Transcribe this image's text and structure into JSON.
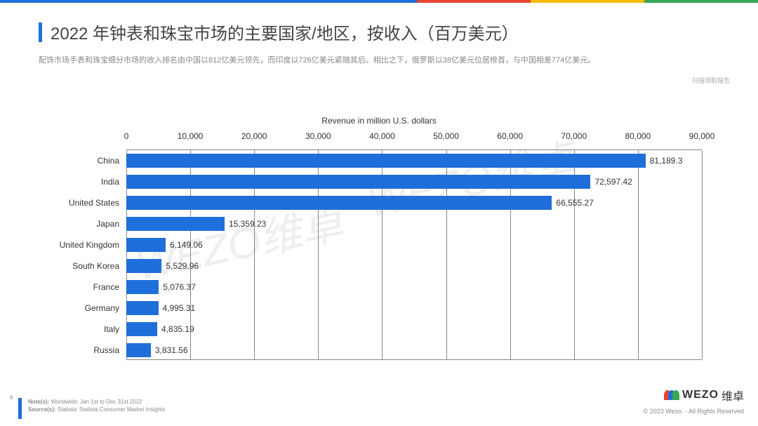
{
  "accent_colors": [
    "#1e6fd9",
    "#e94335",
    "#fbbc05",
    "#34a853"
  ],
  "header": {
    "title": "2022 年钟表和珠宝市场的主要国家/地区，按收入（百万美元）",
    "subtitle": "配饰市场手表和珠宝细分市场的收入排名由中国以812亿美元领先，而印度以726亿美元紧随其后。相比之下，俄罗斯以38亿美元位居榜首，与中国相差774亿美元。",
    "scan_note": "扫描领取报告",
    "title_marker_color": "#1e6fd9",
    "title_color": "#444444",
    "title_fontsize": 24,
    "subtitle_color": "#888888",
    "subtitle_fontsize": 11
  },
  "chart": {
    "type": "bar-horizontal",
    "axis_title": "Revenue in million U.S. dollars",
    "bar_color": "#1e6fd9",
    "grid_color": "#888888",
    "background_color": "#ffffff",
    "label_fontsize": 12,
    "value_fontsize": 12,
    "xlim": [
      0,
      90000
    ],
    "xtick_step": 10000,
    "xticks": [
      "0",
      "10,000",
      "20,000",
      "30,000",
      "40,000",
      "50,000",
      "60,000",
      "70,000",
      "80,000",
      "90,000"
    ],
    "categories": [
      "China",
      "India",
      "United States",
      "Japan",
      "United Kingdom",
      "South Korea",
      "France",
      "Germany",
      "Italy",
      "Russia"
    ],
    "values": [
      81189.3,
      72597.42,
      66555.27,
      15359.23,
      6149.06,
      5529.96,
      5076.37,
      4995.31,
      4835.19,
      3831.56
    ],
    "value_labels": [
      "81,189.3",
      "72,597.42",
      "66,555.27",
      "15,359.23",
      "6,149.06",
      "5,529.96",
      "5,076.37",
      "4,995.31",
      "4,835.19",
      "3,831.56"
    ]
  },
  "watermark": {
    "text": "WEZO维卓",
    "color": "#eeeeee"
  },
  "footer": {
    "page_number": "6",
    "note_label": "Note(s):",
    "note_text": "Worldwide; Jan 1st to Dec 31st 2022",
    "source_label": "Source(s):",
    "source_text": "Statista; Statista Consumer Market Insights",
    "copyright": "© 2023 Wezo. - All Rights Reserved",
    "logo_text": "WEZO",
    "logo_cn": "维卓",
    "logo_colors": [
      "#e94335",
      "#1e6fd9",
      "#34a853"
    ]
  }
}
